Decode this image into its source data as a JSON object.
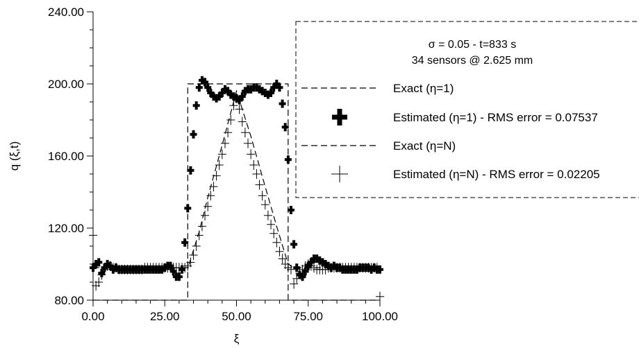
{
  "chart_data": {
    "type": "scatter",
    "xlabel": "ξ",
    "ylabel": "q (ξ,t)",
    "xlim": [
      0,
      100
    ],
    "ylim": [
      80,
      240
    ],
    "x_ticks": [
      "0.00",
      "25.00",
      "50.00",
      "75.00",
      "100.00"
    ],
    "y_ticks": [
      "80.00",
      "120.00",
      "160.00",
      "200.00",
      "240.00"
    ],
    "x_tick_values": [
      0,
      25,
      50,
      75,
      100
    ],
    "y_tick_values": [
      80,
      120,
      160,
      200,
      240
    ],
    "grid": false,
    "legend_position": "top-right",
    "annotation": {
      "line1": "σ = 0.05 - t=833 s",
      "line2": "34 sensors @ 2.625 mm"
    },
    "series": [
      {
        "name": "Exact (η=1)",
        "style": "dashed-line",
        "x": [
          0,
          33,
          33,
          68,
          68,
          100
        ],
        "y": [
          80,
          80,
          200,
          200,
          80,
          80
        ]
      },
      {
        "name": "Estimated (η=1) - RMS error = 0.07537",
        "style": "bold-plus-markers",
        "x": [
          0,
          1,
          2,
          3,
          4,
          5,
          6,
          7,
          8,
          9,
          10,
          11,
          12,
          13,
          14,
          15,
          16,
          17,
          18,
          19,
          20,
          21,
          22,
          23,
          24,
          25,
          26,
          27,
          28,
          29,
          30,
          31,
          32,
          33,
          34,
          35,
          36,
          37,
          38,
          39,
          40,
          41,
          42,
          43,
          44,
          45,
          46,
          47,
          48,
          49,
          50,
          51,
          52,
          53,
          54,
          55,
          56,
          57,
          58,
          59,
          60,
          61,
          62,
          63,
          64,
          65,
          66,
          67,
          68,
          69,
          70,
          71,
          72,
          73,
          74,
          75,
          76,
          77,
          78,
          79,
          80,
          81,
          82,
          83,
          84,
          85,
          86,
          87,
          88,
          89,
          90,
          91,
          92,
          93,
          94,
          95,
          96,
          97,
          98,
          99,
          100
        ],
        "y": [
          98,
          100,
          101,
          95,
          98,
          100,
          99,
          97,
          98,
          97,
          97,
          97,
          97,
          97,
          97,
          97,
          97,
          97,
          97,
          97,
          97,
          97,
          97,
          97,
          97,
          98,
          99,
          99,
          96,
          93,
          93,
          97,
          112,
          131,
          152,
          172,
          188,
          198,
          202,
          201,
          198,
          195,
          193,
          192,
          193,
          195,
          197,
          196,
          194,
          193,
          192,
          191,
          193,
          196,
          197,
          197,
          198,
          198,
          197,
          196,
          195,
          194,
          195,
          198,
          200,
          198,
          189,
          176,
          158,
          130,
          111,
          98,
          94,
          93,
          96,
          99,
          101,
          103,
          103,
          102,
          101,
          100,
          99,
          98,
          99,
          98,
          98,
          97,
          97,
          97,
          97,
          97,
          97,
          98,
          98,
          98,
          98,
          97,
          98,
          97,
          97
        ]
      },
      {
        "name": "Exact (η=N)",
        "style": "dashed-line",
        "x": [
          0,
          32.5,
          33.5,
          37,
          40,
          45,
          50,
          55,
          60,
          64,
          68,
          70,
          100
        ],
        "y": [
          98,
          98,
          100,
          118,
          137,
          166,
          196,
          171,
          143,
          121,
          100,
          98,
          98
        ]
      },
      {
        "name": "Estimated (η=N) - RMS error = 0.02205",
        "style": "thin-plus-markers",
        "x": [
          0,
          1,
          2,
          3,
          4,
          5,
          6,
          7,
          8,
          9,
          10,
          11,
          12,
          13,
          14,
          15,
          16,
          17,
          18,
          19,
          20,
          21,
          22,
          23,
          24,
          25,
          26,
          27,
          28,
          29,
          30,
          31,
          32,
          33,
          34,
          35,
          36,
          37,
          38,
          39,
          40,
          41,
          42,
          43,
          44,
          45,
          46,
          47,
          48,
          49,
          50,
          51,
          52,
          53,
          54,
          55,
          56,
          57,
          58,
          59,
          60,
          61,
          62,
          63,
          64,
          65,
          66,
          67,
          68,
          69,
          70,
          71,
          72,
          73,
          74,
          75,
          76,
          77,
          78,
          79,
          80,
          81,
          82,
          83,
          84,
          85,
          86,
          87,
          88,
          89,
          90,
          91,
          92,
          93,
          94,
          95,
          96,
          97,
          98,
          99,
          100
        ],
        "y": [
          116,
          88,
          90,
          94,
          97,
          99,
          99,
          98,
          98,
          97,
          97,
          97,
          97,
          97,
          97,
          97,
          97,
          97,
          98,
          98,
          98,
          98,
          98,
          98,
          98,
          98,
          98,
          98,
          98,
          98,
          98,
          98,
          98,
          99,
          101,
          105,
          110,
          116,
          121,
          127,
          132,
          138,
          143,
          149,
          155,
          161,
          167,
          173,
          180,
          188,
          192,
          186,
          179,
          173,
          167,
          161,
          155,
          150,
          144,
          138,
          133,
          127,
          122,
          117,
          112,
          107,
          103,
          100,
          98,
          97,
          89,
          92,
          95,
          97,
          99,
          100,
          99,
          98,
          97,
          97,
          97,
          97,
          98,
          98,
          98,
          98,
          98,
          98,
          98,
          98,
          98,
          98,
          98,
          98,
          98,
          98,
          98,
          98,
          98,
          98,
          82
        ]
      }
    ]
  }
}
